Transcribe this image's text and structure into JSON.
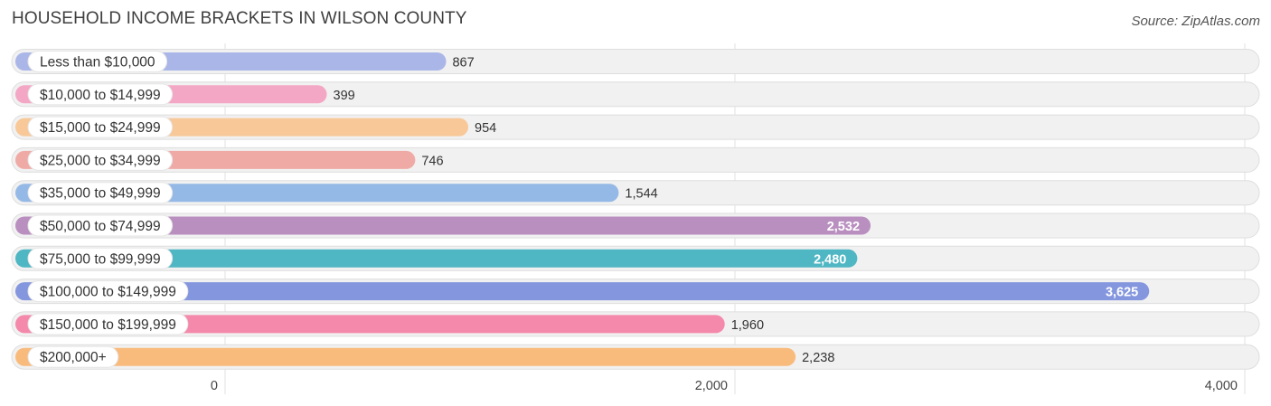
{
  "header": {
    "title": "HOUSEHOLD INCOME BRACKETS IN WILSON COUNTY",
    "source": "Source: ZipAtlas.com"
  },
  "chart_data": {
    "type": "bar",
    "orientation": "horizontal",
    "title": "HOUSEHOLD INCOME BRACKETS IN WILSON COUNTY",
    "categories": [
      "Less than $10,000",
      "$10,000 to $14,999",
      "$15,000 to $24,999",
      "$25,000 to $34,999",
      "$35,000 to $49,999",
      "$50,000 to $74,999",
      "$75,000 to $99,999",
      "$100,000 to $149,999",
      "$150,000 to $199,999",
      "$200,000+"
    ],
    "values": [
      867,
      399,
      954,
      746,
      1544,
      2532,
      2480,
      3625,
      1960,
      2238
    ],
    "value_labels": [
      "867",
      "399",
      "954",
      "746",
      "1,544",
      "2,532",
      "2,480",
      "3,625",
      "1,960",
      "2,238"
    ],
    "colors": [
      "#aab6e8",
      "#f4a7c4",
      "#f8c898",
      "#efaaa6",
      "#95b9e6",
      "#b98fc0",
      "#4fb6c3",
      "#8496de",
      "#f489ab",
      "#f8bb7c"
    ],
    "xlim": [
      0,
      4000
    ],
    "xticks": [
      0,
      2000,
      4000
    ],
    "xtick_labels": [
      "0",
      "2,000",
      "4,000"
    ],
    "grid": true
  }
}
